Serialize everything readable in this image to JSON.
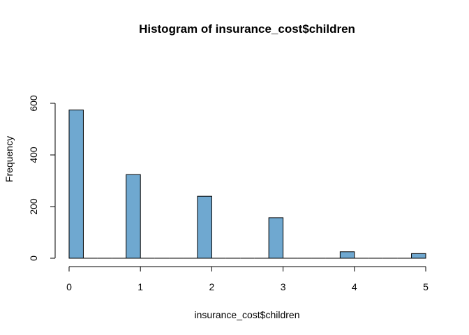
{
  "chart_data": {
    "type": "bar",
    "title": "Histogram of insurance_cost$children",
    "xlabel": "insurance_cost$children",
    "ylabel": "Frequency",
    "bins": [
      {
        "start": 0.0,
        "end": 0.2,
        "count": 574
      },
      {
        "start": 0.8,
        "end": 1.0,
        "count": 324
      },
      {
        "start": 1.8,
        "end": 2.0,
        "count": 240
      },
      {
        "start": 2.8,
        "end": 3.0,
        "count": 157
      },
      {
        "start": 3.8,
        "end": 4.0,
        "count": 25
      },
      {
        "start": 4.8,
        "end": 5.0,
        "count": 18
      }
    ],
    "xlim": [
      0,
      5
    ],
    "ylim": [
      0,
      600
    ],
    "x_ticks": [
      "0",
      "1",
      "2",
      "3",
      "4",
      "5"
    ],
    "y_ticks": [
      "0",
      "200",
      "400",
      "600"
    ],
    "bar_color": "#6fa8d0",
    "grid": false
  }
}
